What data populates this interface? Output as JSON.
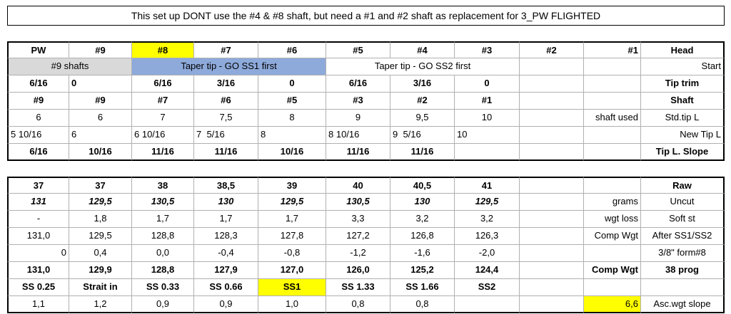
{
  "header": {
    "title": "This set up DONT use the #4 & #8 shaft, but need a #1 and #2 shaft as replacement for 3_PW FLIGHTED"
  },
  "table": {
    "rows": [
      [
        "PW",
        "#9",
        "#8",
        "#7",
        "#6",
        "#5",
        "#4",
        "#3",
        "#2",
        "#1",
        "Head"
      ],
      [
        "#9 shafts",
        "Taper tip - GO SS1 first",
        "Taper tip - GO SS2 first",
        null,
        null,
        "Start"
      ],
      [
        "6/16",
        "0",
        "6/16",
        "3/16",
        "0",
        "6/16",
        "3/16",
        "0",
        null,
        null,
        "Tip trim"
      ],
      [
        "#9",
        "#9",
        "#7",
        "#6",
        "#5",
        "#3",
        "#2",
        "#1",
        null,
        null,
        "Shaft"
      ],
      [
        "6",
        "6",
        "7",
        "7,5",
        "8",
        "9",
        "9,5",
        "10",
        null,
        "shaft used",
        "Std.tip L"
      ],
      [
        "5 10/16",
        "6",
        "6 10/16",
        "7  5/16",
        "8",
        "8 10/16",
        "9  5/16",
        "10",
        null,
        null,
        "New Tip L"
      ],
      [
        "6/16",
        "10/16",
        "11/16",
        "11/16",
        "10/16",
        "11/16",
        "11/16",
        null,
        null,
        null,
        "Tip L. Slope"
      ],
      [
        "37",
        "37",
        "38",
        "38,5",
        "39",
        "40",
        "40,5",
        "41",
        null,
        null,
        "Raw"
      ],
      [
        "131",
        "129,5",
        "130,5",
        "130",
        "129,5",
        "130,5",
        "130",
        "129,5",
        null,
        "grams",
        "Uncut"
      ],
      [
        "-",
        "1,8",
        "1,7",
        "1,7",
        "1,7",
        "3,3",
        "3,2",
        "3,2",
        null,
        "wgt loss",
        "Soft st"
      ],
      [
        "131,0",
        "129,5",
        "128,8",
        "128,3",
        "127,8",
        "127,2",
        "126,8",
        "126,3",
        null,
        "Comp Wgt",
        "After SS1/SS2"
      ],
      [
        "0",
        "0,4",
        "0,0",
        "-0,4",
        "-0,8",
        "-1,2",
        "-1,6",
        "-2,0",
        null,
        null,
        "3/8\" form#8"
      ],
      [
        "131,0",
        "129,9",
        "128,8",
        "127,9",
        "127,0",
        "126,0",
        "125,2",
        "124,4",
        null,
        "Comp Wgt",
        "38 prog"
      ],
      [
        "SS 0.25",
        "Strait in",
        "SS 0.33",
        "SS 0.66",
        "SS1",
        "SS 1.33",
        "SS 1.66",
        "SS2",
        null,
        null,
        null
      ],
      [
        "1,1",
        "1,2",
        "0,9",
        "0,9",
        "1,0",
        "0,8",
        "0,8",
        null,
        null,
        "6,6",
        "Asc.wgt slope"
      ]
    ]
  }
}
